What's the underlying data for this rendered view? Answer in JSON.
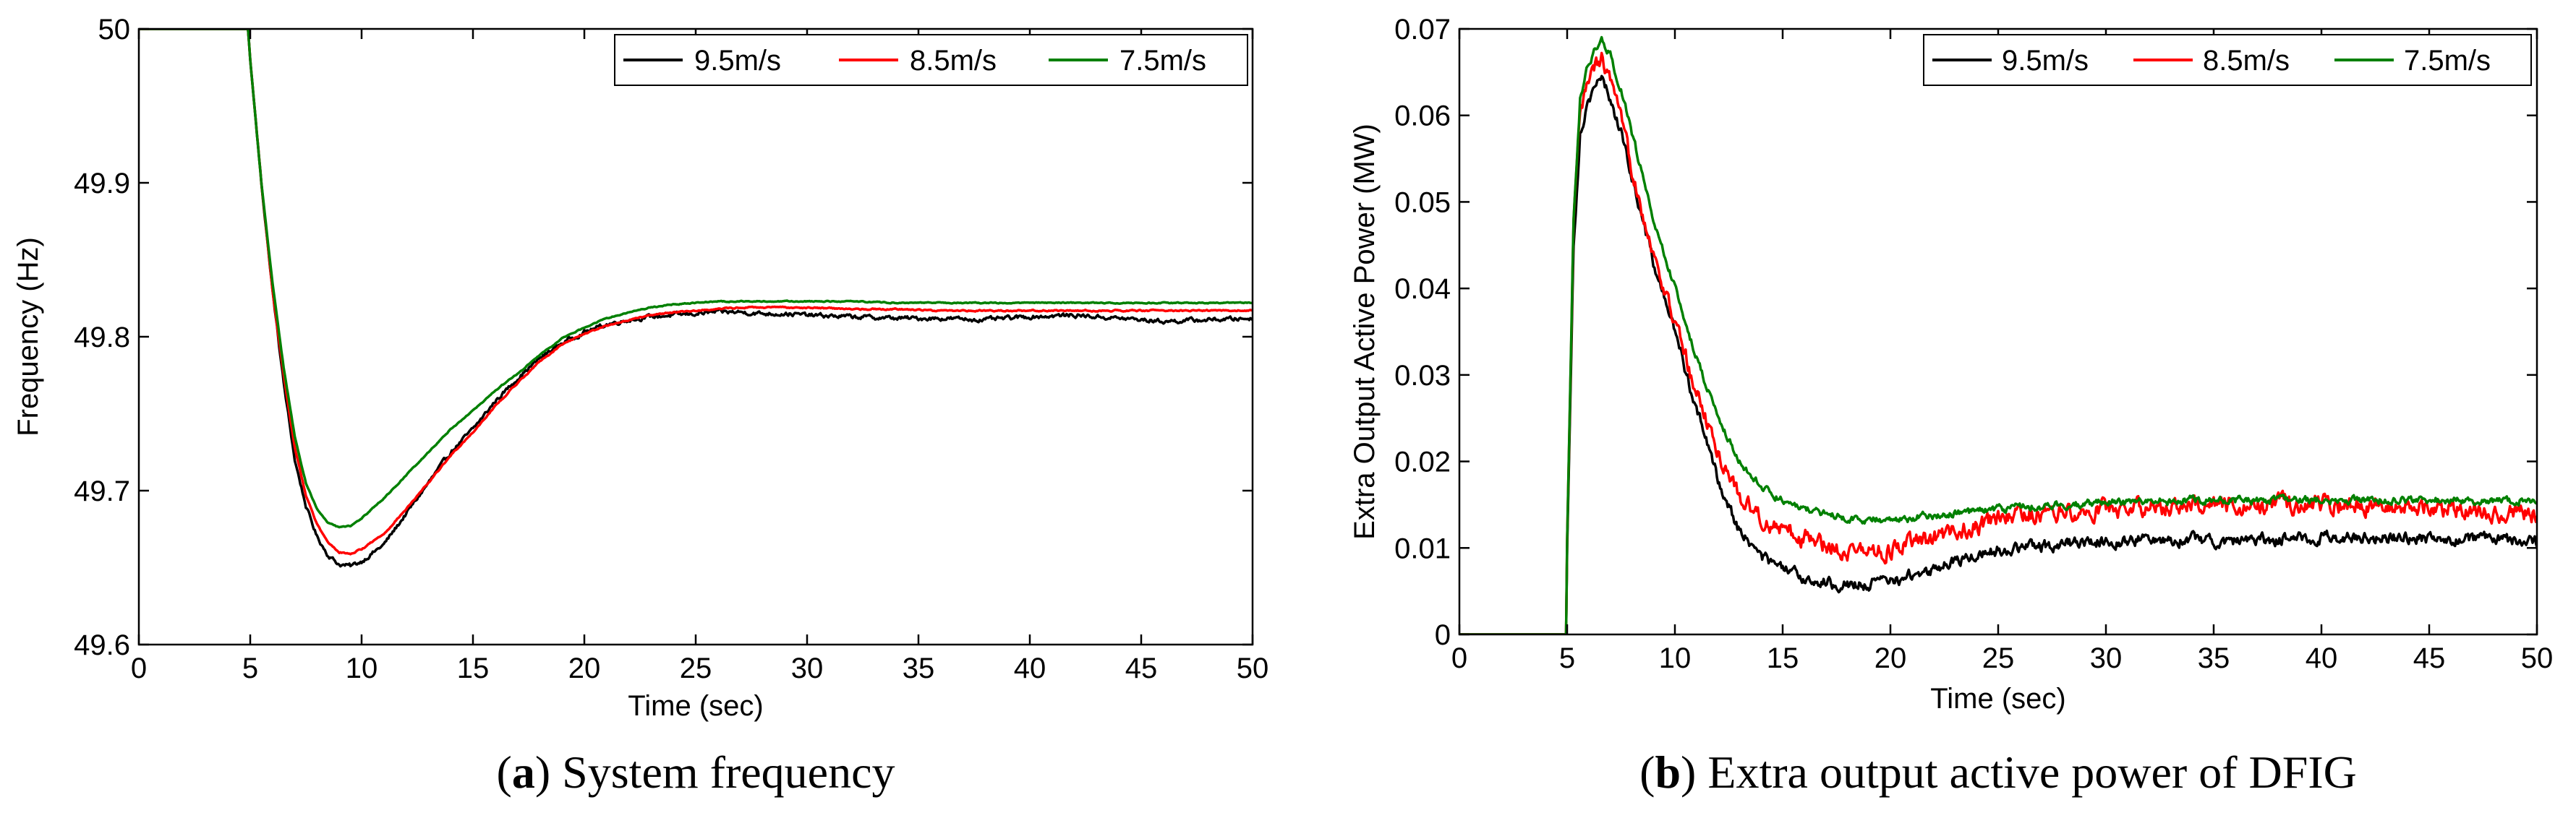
{
  "chart_data": [
    {
      "id": "a",
      "type": "line",
      "caption_letter": "a",
      "caption_text": "System frequency",
      "xlabel": "Time (sec)",
      "ylabel": "Frequency (Hz)",
      "xlim": [
        0,
        50
      ],
      "ylim": [
        49.6,
        50
      ],
      "xticks": [
        0,
        5,
        10,
        15,
        20,
        25,
        30,
        35,
        40,
        45,
        50
      ],
      "yticks": [
        49.6,
        49.7,
        49.8,
        49.9,
        50
      ],
      "ytick_labels": [
        "49.6",
        "49.7",
        "49.8",
        "49.9",
        "50"
      ],
      "grid": false,
      "legend_position": "top-right",
      "legend_orientation": "horizontal",
      "series": [
        {
          "name": "9.5m/s",
          "color": "#000000",
          "noise": 0.0012,
          "x": [
            0,
            4.9,
            5,
            5.5,
            6,
            6.5,
            7,
            7.5,
            8,
            8.5,
            9,
            9.5,
            10,
            11,
            12,
            13,
            14,
            15,
            16,
            17,
            18,
            19,
            20,
            21,
            22,
            23,
            24,
            25,
            26,
            27,
            28,
            29,
            30,
            32,
            34,
            36,
            38,
            40,
            42,
            44,
            46,
            48,
            50
          ],
          "y": [
            50,
            50,
            49.98,
            49.9,
            49.83,
            49.77,
            49.72,
            49.69,
            49.67,
            49.658,
            49.652,
            49.651,
            49.654,
            49.665,
            49.685,
            49.705,
            49.725,
            49.74,
            49.758,
            49.773,
            49.786,
            49.796,
            49.803,
            49.808,
            49.811,
            49.813,
            49.814,
            49.815,
            49.816,
            49.816,
            49.815,
            49.815,
            49.814,
            49.813,
            49.812,
            49.812,
            49.811,
            49.813,
            49.814,
            49.812,
            49.81,
            49.811,
            49.812
          ]
        },
        {
          "name": "8.5m/s",
          "color": "#ff0000",
          "noise": 0.0004,
          "x": [
            0,
            4.9,
            5,
            5.5,
            6,
            6.5,
            7,
            7.5,
            8,
            8.5,
            9,
            9.5,
            10,
            11,
            12,
            13,
            14,
            15,
            16,
            17,
            18,
            19,
            20,
            21,
            22,
            23,
            24,
            25,
            26,
            27,
            28,
            29,
            30,
            32,
            34,
            36,
            38,
            40,
            42,
            44,
            46,
            48,
            50
          ],
          "y": [
            50,
            50,
            49.98,
            49.9,
            49.83,
            49.775,
            49.728,
            49.697,
            49.678,
            49.666,
            49.66,
            49.659,
            49.662,
            49.672,
            49.688,
            49.705,
            49.723,
            49.738,
            49.755,
            49.77,
            49.784,
            49.795,
            49.802,
            49.807,
            49.811,
            49.814,
            49.816,
            49.817,
            49.818,
            49.819,
            49.819,
            49.819,
            49.819,
            49.818,
            49.818,
            49.817,
            49.817,
            49.817,
            49.817,
            49.817,
            49.817,
            49.817,
            49.817
          ]
        },
        {
          "name": "7.5m/s",
          "color": "#008000",
          "noise": 0.0003,
          "x": [
            0,
            4.9,
            5,
            5.5,
            6,
            6.5,
            7,
            7.5,
            8,
            8.5,
            9,
            9.5,
            10,
            11,
            12,
            13,
            14,
            15,
            16,
            17,
            18,
            19,
            20,
            21,
            22,
            23,
            24,
            25,
            26,
            27,
            28,
            29,
            30,
            32,
            34,
            36,
            38,
            40,
            42,
            44,
            46,
            48,
            50
          ],
          "y": [
            50,
            50,
            49.98,
            49.9,
            49.835,
            49.78,
            49.735,
            49.705,
            49.688,
            49.679,
            49.676,
            49.677,
            49.682,
            49.695,
            49.71,
            49.725,
            49.74,
            49.752,
            49.765,
            49.776,
            49.788,
            49.799,
            49.806,
            49.812,
            49.816,
            49.819,
            49.821,
            49.822,
            49.823,
            49.823,
            49.823,
            49.823,
            49.823,
            49.823,
            49.822,
            49.822,
            49.822,
            49.822,
            49.822,
            49.822,
            49.822,
            49.822,
            49.822
          ]
        }
      ]
    },
    {
      "id": "b",
      "type": "line",
      "caption_letter": "b",
      "caption_text": "Extra output active power of DFIG",
      "xlabel": "Time (sec)",
      "ylabel": "Extra Output Active Power  (MW)",
      "xlim": [
        0,
        50
      ],
      "ylim": [
        0,
        0.07
      ],
      "xticks": [
        0,
        5,
        10,
        15,
        20,
        25,
        30,
        35,
        40,
        45,
        50
      ],
      "yticks": [
        0,
        0.01,
        0.02,
        0.03,
        0.04,
        0.05,
        0.06,
        0.07
      ],
      "ytick_labels": [
        "0",
        "0.01",
        "0.02",
        "0.03",
        "0.04",
        "0.05",
        "0.06",
        "0.07"
      ],
      "grid": false,
      "legend_position": "top-right",
      "legend_orientation": "horizontal",
      "series": [
        {
          "name": "9.5m/s",
          "color": "#000000",
          "noise": 0.0006,
          "x": [
            0,
            4.95,
            5,
            5.3,
            5.6,
            6,
            6.3,
            6.6,
            7,
            7.5,
            8,
            8.5,
            9,
            10,
            11,
            12,
            13,
            14,
            15,
            16,
            17,
            18,
            19,
            20,
            21,
            22,
            23,
            24,
            25,
            26,
            27,
            28,
            30,
            32,
            34,
            36,
            38,
            40,
            42,
            44,
            46,
            48,
            50
          ],
          "y": [
            0,
            0,
            0.01,
            0.045,
            0.058,
            0.062,
            0.0635,
            0.064,
            0.062,
            0.058,
            0.053,
            0.048,
            0.043,
            0.035,
            0.026,
            0.018,
            0.012,
            0.009,
            0.0075,
            0.0065,
            0.006,
            0.0058,
            0.0058,
            0.0062,
            0.0068,
            0.0075,
            0.0085,
            0.0092,
            0.0098,
            0.01,
            0.0102,
            0.0105,
            0.0108,
            0.011,
            0.011,
            0.0108,
            0.011,
            0.0112,
            0.0112,
            0.0112,
            0.011,
            0.011,
            0.0105
          ]
        },
        {
          "name": "8.5m/s",
          "color": "#ff0000",
          "noise": 0.0009,
          "x": [
            0,
            4.95,
            5,
            5.3,
            5.6,
            6,
            6.3,
            6.6,
            7,
            7.5,
            8,
            8.5,
            9,
            10,
            11,
            12,
            13,
            14,
            15,
            16,
            17,
            18,
            19,
            20,
            21,
            22,
            23,
            24,
            25,
            26,
            27,
            28,
            30,
            32,
            34,
            36,
            38,
            40,
            42,
            44,
            46,
            48,
            50
          ],
          "y": [
            0,
            0,
            0.011,
            0.047,
            0.06,
            0.064,
            0.0655,
            0.0665,
            0.064,
            0.059,
            0.054,
            0.049,
            0.044,
            0.036,
            0.028,
            0.021,
            0.016,
            0.0135,
            0.012,
            0.0112,
            0.0105,
            0.0098,
            0.0095,
            0.0098,
            0.0105,
            0.011,
            0.0118,
            0.0125,
            0.0132,
            0.0138,
            0.014,
            0.0142,
            0.0145,
            0.0148,
            0.0148,
            0.0148,
            0.015,
            0.015,
            0.015,
            0.0148,
            0.0145,
            0.0142,
            0.0138
          ]
        },
        {
          "name": "7.5m/s",
          "color": "#008000",
          "noise": 0.0004,
          "x": [
            0,
            4.95,
            5,
            5.3,
            5.6,
            6,
            6.3,
            6.6,
            7,
            7.5,
            8,
            8.5,
            9,
            10,
            11,
            12,
            13,
            14,
            15,
            16,
            17,
            18,
            19,
            20,
            21,
            22,
            23,
            24,
            25,
            26,
            27,
            28,
            30,
            32,
            34,
            36,
            38,
            40,
            42,
            44,
            46,
            48,
            50
          ],
          "y": [
            0,
            0,
            0.011,
            0.048,
            0.062,
            0.066,
            0.0675,
            0.0685,
            0.067,
            0.063,
            0.058,
            0.053,
            0.048,
            0.04,
            0.032,
            0.025,
            0.02,
            0.017,
            0.0155,
            0.0145,
            0.014,
            0.0135,
            0.0133,
            0.0132,
            0.0135,
            0.0138,
            0.014,
            0.0143,
            0.0145,
            0.0147,
            0.0148,
            0.015,
            0.0152,
            0.0153,
            0.0155,
            0.0155,
            0.0155,
            0.0155,
            0.0155,
            0.0155,
            0.0155,
            0.0155,
            0.0155
          ]
        }
      ]
    }
  ]
}
